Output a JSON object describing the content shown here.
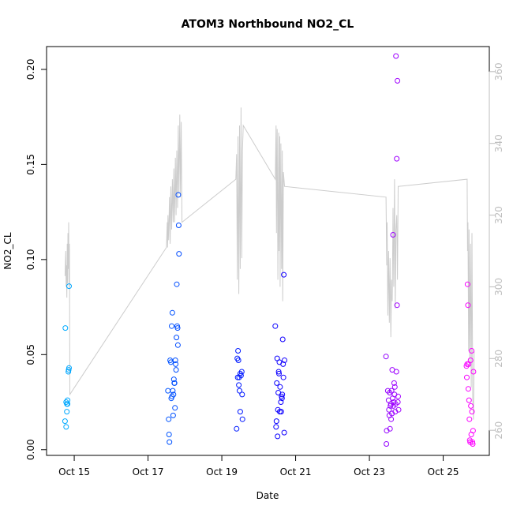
{
  "chart_data": {
    "type": "scatter",
    "title": "ATOM3 Northbound NO2_CL",
    "xlabel": "Date",
    "ylabel": "NO2_CL",
    "x_unit": "days in October",
    "xlim": [
      14.25,
      26.25
    ],
    "ylim": [
      -0.003,
      0.212
    ],
    "y2lim": [
      253,
      367
    ],
    "x_ticks": [
      {
        "value": 15,
        "label": "Oct 15"
      },
      {
        "value": 17,
        "label": "Oct 17"
      },
      {
        "value": 19,
        "label": "Oct 19"
      },
      {
        "value": 21,
        "label": "Oct 21"
      },
      {
        "value": 23,
        "label": "Oct 23"
      },
      {
        "value": 25,
        "label": "Oct 25"
      }
    ],
    "y_ticks": [
      {
        "value": 0.0,
        "label": "0.00"
      },
      {
        "value": 0.05,
        "label": "0.05"
      },
      {
        "value": 0.1,
        "label": "0.10"
      },
      {
        "value": 0.15,
        "label": "0.15"
      },
      {
        "value": 0.2,
        "label": "0.20"
      }
    ],
    "y2_ticks": [
      {
        "value": 260,
        "label": "260"
      },
      {
        "value": 280,
        "label": "280"
      },
      {
        "value": 300,
        "label": "300"
      },
      {
        "value": 320,
        "label": "320"
      },
      {
        "value": 340,
        "label": "340"
      },
      {
        "value": 360,
        "label": "360"
      }
    ],
    "grid": false,
    "legend": "none",
    "points_color_scale": [
      "#00aaff",
      "#0000ff",
      "#ff00ff"
    ],
    "secondary_line_color": "#cccccc",
    "points": [
      [
        14.75,
        0.015
      ],
      [
        14.76,
        0.064
      ],
      [
        14.78,
        0.012
      ],
      [
        14.78,
        0.025
      ],
      [
        14.8,
        0.024
      ],
      [
        14.8,
        0.02
      ],
      [
        14.82,
        0.024
      ],
      [
        14.82,
        0.026
      ],
      [
        14.84,
        0.041
      ],
      [
        14.85,
        0.042
      ],
      [
        14.86,
        0.086
      ],
      [
        14.86,
        0.043
      ],
      [
        17.54,
        0.031
      ],
      [
        17.56,
        0.016
      ],
      [
        17.57,
        0.008
      ],
      [
        17.58,
        0.004
      ],
      [
        17.6,
        0.047
      ],
      [
        17.62,
        0.046
      ],
      [
        17.63,
        0.027
      ],
      [
        17.64,
        0.065
      ],
      [
        17.65,
        0.028
      ],
      [
        17.66,
        0.072
      ],
      [
        17.67,
        0.031
      ],
      [
        17.68,
        0.018
      ],
      [
        17.69,
        0.029
      ],
      [
        17.7,
        0.037
      ],
      [
        17.71,
        0.035
      ],
      [
        17.72,
        0.035
      ],
      [
        17.73,
        0.022
      ],
      [
        17.74,
        0.047
      ],
      [
        17.75,
        0.045
      ],
      [
        17.76,
        0.042
      ],
      [
        17.77,
        0.059
      ],
      [
        17.78,
        0.087
      ],
      [
        17.79,
        0.065
      ],
      [
        17.8,
        0.064
      ],
      [
        17.81,
        0.055
      ],
      [
        17.82,
        0.134
      ],
      [
        17.83,
        0.118
      ],
      [
        17.84,
        0.103
      ],
      [
        19.4,
        0.011
      ],
      [
        19.42,
        0.048
      ],
      [
        19.43,
        0.038
      ],
      [
        19.44,
        0.052
      ],
      [
        19.45,
        0.047
      ],
      [
        19.46,
        0.034
      ],
      [
        19.47,
        0.038
      ],
      [
        19.48,
        0.031
      ],
      [
        19.5,
        0.04
      ],
      [
        19.5,
        0.02
      ],
      [
        19.52,
        0.039
      ],
      [
        19.54,
        0.041
      ],
      [
        19.55,
        0.029
      ],
      [
        19.56,
        0.016
      ],
      [
        20.45,
        0.065
      ],
      [
        20.47,
        0.012
      ],
      [
        20.48,
        0.015
      ],
      [
        20.49,
        0.035
      ],
      [
        20.5,
        0.048
      ],
      [
        20.51,
        0.007
      ],
      [
        20.52,
        0.021
      ],
      [
        20.53,
        0.03
      ],
      [
        20.54,
        0.041
      ],
      [
        20.55,
        0.04
      ],
      [
        20.56,
        0.046
      ],
      [
        20.57,
        0.02
      ],
      [
        20.58,
        0.033
      ],
      [
        20.6,
        0.025
      ],
      [
        20.61,
        0.02
      ],
      [
        20.62,
        0.028
      ],
      [
        20.63,
        0.027
      ],
      [
        20.64,
        0.029
      ],
      [
        20.65,
        0.058
      ],
      [
        20.66,
        0.045
      ],
      [
        20.67,
        0.038
      ],
      [
        20.68,
        0.092
      ],
      [
        20.69,
        0.009
      ],
      [
        20.7,
        0.047
      ],
      [
        23.45,
        0.049
      ],
      [
        23.46,
        0.003
      ],
      [
        23.47,
        0.01
      ],
      [
        23.5,
        0.031
      ],
      [
        23.52,
        0.026
      ],
      [
        23.53,
        0.021
      ],
      [
        23.54,
        0.018
      ],
      [
        23.55,
        0.03
      ],
      [
        23.56,
        0.011
      ],
      [
        23.57,
        0.023
      ],
      [
        23.58,
        0.024
      ],
      [
        23.59,
        0.016
      ],
      [
        23.6,
        0.031
      ],
      [
        23.61,
        0.019
      ],
      [
        23.62,
        0.042
      ],
      [
        23.63,
        0.027
      ],
      [
        23.64,
        0.113
      ],
      [
        23.65,
        0.023
      ],
      [
        23.66,
        0.025
      ],
      [
        23.67,
        0.035
      ],
      [
        23.68,
        0.029
      ],
      [
        23.69,
        0.033
      ],
      [
        23.7,
        0.02
      ],
      [
        23.71,
        0.024
      ],
      [
        23.72,
        0.207
      ],
      [
        23.73,
        0.041
      ],
      [
        23.74,
        0.153
      ],
      [
        23.75,
        0.076
      ],
      [
        23.76,
        0.194
      ],
      [
        23.77,
        0.025
      ],
      [
        23.78,
        0.028
      ],
      [
        23.79,
        0.021
      ],
      [
        25.63,
        0.044
      ],
      [
        25.64,
        0.038
      ],
      [
        25.65,
        0.045
      ],
      [
        25.66,
        0.087
      ],
      [
        25.67,
        0.076
      ],
      [
        25.68,
        0.032
      ],
      [
        25.69,
        0.045
      ],
      [
        25.7,
        0.026
      ],
      [
        25.71,
        0.016
      ],
      [
        25.72,
        0.005
      ],
      [
        25.73,
        0.004
      ],
      [
        25.74,
        0.047
      ],
      [
        25.75,
        0.023
      ],
      [
        25.76,
        0.008
      ],
      [
        25.77,
        0.052
      ],
      [
        25.78,
        0.02
      ],
      [
        25.79,
        0.004
      ],
      [
        25.8,
        0.003
      ],
      [
        25.81,
        0.01
      ],
      [
        25.82,
        0.041
      ]
    ],
    "secondary_line": [
      [
        14.75,
        303
      ],
      [
        14.77,
        310
      ],
      [
        14.78,
        300
      ],
      [
        14.79,
        306
      ],
      [
        14.8,
        297
      ],
      [
        14.81,
        312
      ],
      [
        14.82,
        301
      ],
      [
        14.83,
        315
      ],
      [
        14.84,
        305
      ],
      [
        14.85,
        318
      ],
      [
        14.86,
        300
      ],
      [
        14.87,
        312
      ],
      [
        14.88,
        270
      ],
      [
        17.5,
        311
      ],
      [
        17.52,
        318
      ],
      [
        17.53,
        311
      ],
      [
        17.54,
        320
      ],
      [
        17.56,
        313
      ],
      [
        17.58,
        325
      ],
      [
        17.6,
        312
      ],
      [
        17.62,
        328
      ],
      [
        17.64,
        316
      ],
      [
        17.66,
        330
      ],
      [
        17.68,
        318
      ],
      [
        17.7,
        333
      ],
      [
        17.72,
        318
      ],
      [
        17.74,
        336
      ],
      [
        17.76,
        320
      ],
      [
        17.78,
        338
      ],
      [
        17.8,
        322
      ],
      [
        17.82,
        345
      ],
      [
        17.84,
        326
      ],
      [
        17.86,
        348
      ],
      [
        17.88,
        325
      ],
      [
        17.9,
        346
      ],
      [
        17.92,
        318
      ],
      [
        19.38,
        330
      ],
      [
        19.4,
        337
      ],
      [
        19.42,
        302
      ],
      [
        19.44,
        342
      ],
      [
        19.46,
        298
      ],
      [
        19.48,
        345
      ],
      [
        19.5,
        305
      ],
      [
        19.52,
        350
      ],
      [
        19.54,
        308
      ],
      [
        19.56,
        338
      ],
      [
        19.58,
        345
      ],
      [
        20.45,
        330
      ],
      [
        20.47,
        345
      ],
      [
        20.48,
        315
      ],
      [
        20.5,
        344
      ],
      [
        20.52,
        302
      ],
      [
        20.54,
        343
      ],
      [
        20.55,
        310
      ],
      [
        20.57,
        342
      ],
      [
        20.58,
        300
      ],
      [
        20.6,
        340
      ],
      [
        20.62,
        305
      ],
      [
        20.64,
        338
      ],
      [
        20.65,
        296
      ],
      [
        20.67,
        332
      ],
      [
        20.7,
        328
      ],
      [
        23.45,
        325
      ],
      [
        23.47,
        306
      ],
      [
        23.48,
        318
      ],
      [
        23.5,
        292
      ],
      [
        23.52,
        310
      ],
      [
        23.54,
        290
      ],
      [
        23.56,
        308
      ],
      [
        23.58,
        286
      ],
      [
        23.6,
        302
      ],
      [
        23.62,
        296
      ],
      [
        23.64,
        322
      ],
      [
        23.66,
        300
      ],
      [
        23.68,
        330
      ],
      [
        23.7,
        294
      ],
      [
        23.72,
        316
      ],
      [
        23.74,
        320
      ],
      [
        23.76,
        302
      ],
      [
        23.78,
        328
      ],
      [
        25.65,
        330
      ],
      [
        25.66,
        310
      ],
      [
        25.67,
        318
      ],
      [
        25.69,
        282
      ],
      [
        25.7,
        316
      ],
      [
        25.72,
        278
      ],
      [
        25.74,
        312
      ],
      [
        25.76,
        272
      ],
      [
        25.78,
        315
      ],
      [
        25.8,
        269
      ],
      [
        25.82,
        263
      ],
      [
        25.84,
        282
      ]
    ]
  }
}
